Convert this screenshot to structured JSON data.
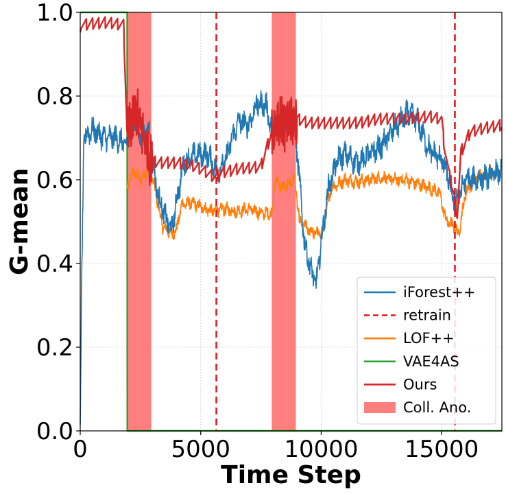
{
  "chart_data": {
    "type": "line",
    "title": "",
    "xlabel": "Time Step",
    "ylabel": "G-mean",
    "xlim": [
      0,
      17500
    ],
    "ylim": [
      0.0,
      1.0
    ],
    "xticks": [
      0,
      5000,
      10000,
      15000
    ],
    "xtick_labels": [
      "0",
      "5000",
      "10000",
      "15000"
    ],
    "yticks": [
      0.0,
      0.2,
      0.4,
      0.6,
      0.8,
      1.0
    ],
    "ytick_labels": [
      "0.0",
      "0.2",
      "0.4",
      "0.6",
      "0.8",
      "1.0"
    ],
    "grid": true,
    "legend_position": "lower-right",
    "shaded_regions": [
      {
        "name": "Coll. Ano.",
        "x0": 1950,
        "x1": 2950,
        "color": "#ff7f7f"
      },
      {
        "name": "Coll. Ano.",
        "x0": 7950,
        "x1": 8950,
        "color": "#ff7f7f"
      }
    ],
    "vlines": {
      "name": "retrain",
      "x": [
        5650,
        15550
      ],
      "color": "#e41a1c",
      "style": "dashed"
    },
    "series": [
      {
        "name": "VAE4AS",
        "color": "#2ca02c",
        "x": [
          0,
          1950,
          1955,
          17500
        ],
        "y": [
          1.0,
          1.0,
          0.0,
          0.0
        ]
      },
      {
        "name": "LOF++",
        "color": "#ff7f0e",
        "noise": 0.012,
        "x": [
          1950,
          2200,
          2500,
          2900,
          3200,
          3400,
          3800,
          4000,
          4200,
          4600,
          5000,
          5500,
          6000,
          6500,
          7000,
          7500,
          7950,
          8100,
          8400,
          8900,
          9100,
          9500,
          9900,
          10100,
          10400,
          11000,
          11500,
          12000,
          12500,
          13000,
          13500,
          14000,
          14500,
          14900,
          15200,
          15500,
          15700,
          16000,
          16500,
          17000,
          17500
        ],
        "y": [
          0.58,
          0.62,
          0.6,
          0.63,
          0.55,
          0.49,
          0.47,
          0.48,
          0.54,
          0.545,
          0.535,
          0.525,
          0.53,
          0.525,
          0.53,
          0.52,
          0.52,
          0.6,
          0.58,
          0.6,
          0.5,
          0.48,
          0.47,
          0.48,
          0.58,
          0.6,
          0.595,
          0.6,
          0.605,
          0.6,
          0.6,
          0.59,
          0.58,
          0.57,
          0.5,
          0.49,
          0.47,
          0.57,
          0.61,
          0.615,
          0.62
        ]
      },
      {
        "name": "iForest++",
        "color": "#1f77b4",
        "noise": 0.022,
        "x": [
          0,
          50,
          150,
          500,
          1000,
          1500,
          1950,
          2200,
          2500,
          2900,
          3100,
          3300,
          3600,
          3800,
          4000,
          4300,
          4800,
          5300,
          5700,
          6000,
          6300,
          6600,
          7000,
          7300,
          7700,
          7950,
          8200,
          8500,
          8900,
          9100,
          9300,
          9600,
          9800,
          10000,
          10300,
          10700,
          11000,
          11500,
          12000,
          12500,
          13000,
          13300,
          13600,
          14000,
          14400,
          14700,
          15000,
          15300,
          15500,
          15700,
          16000,
          16500,
          17000,
          17500
        ],
        "y": [
          0.0,
          0.3,
          0.7,
          0.72,
          0.7,
          0.7,
          0.68,
          0.75,
          0.7,
          0.72,
          0.6,
          0.55,
          0.5,
          0.48,
          0.55,
          0.64,
          0.66,
          0.66,
          0.62,
          0.64,
          0.7,
          0.74,
          0.73,
          0.78,
          0.78,
          0.72,
          0.72,
          0.75,
          0.73,
          0.6,
          0.45,
          0.38,
          0.35,
          0.45,
          0.58,
          0.65,
          0.66,
          0.64,
          0.66,
          0.68,
          0.72,
          0.74,
          0.76,
          0.74,
          0.68,
          0.66,
          0.65,
          0.6,
          0.55,
          0.56,
          0.6,
          0.6,
          0.61,
          0.62
        ]
      },
      {
        "name": "Ours",
        "color": "#d62728",
        "noise": 0.0,
        "sawtooth": true,
        "x": [
          0,
          40,
          200,
          1000,
          1800,
          1950,
          2300,
          2950,
          3300,
          4000,
          4600,
          5000,
          5300,
          5600,
          5800,
          6500,
          7500,
          7950,
          8200,
          8500,
          8950,
          9500,
          10500,
          11500,
          12500,
          13500,
          14500,
          15000,
          15100,
          15300,
          15500,
          15650,
          15800,
          16200,
          17000,
          17500
        ],
        "y": [
          0.98,
          0.985,
          0.985,
          0.99,
          0.985,
          0.72,
          0.78,
          0.66,
          0.655,
          0.655,
          0.65,
          0.64,
          0.63,
          0.62,
          0.63,
          0.64,
          0.645,
          0.73,
          0.77,
          0.74,
          0.76,
          0.75,
          0.75,
          0.75,
          0.76,
          0.76,
          0.765,
          0.76,
          0.7,
          0.63,
          0.58,
          0.53,
          0.68,
          0.73,
          0.74,
          0.745
        ]
      }
    ]
  },
  "legend": {
    "items": [
      {
        "label": "iForest++",
        "color": "#1f77b4",
        "kind": "line"
      },
      {
        "label": "retrain",
        "color": "#e41a1c",
        "kind": "dashed"
      },
      {
        "label": "LOF++",
        "color": "#ff7f0e",
        "kind": "line"
      },
      {
        "label": "VAE4AS",
        "color": "#2ca02c",
        "kind": "line"
      },
      {
        "label": "Ours",
        "color": "#d62728",
        "kind": "line"
      },
      {
        "label": "Coll. Ano.",
        "color": "#ff7f7f",
        "kind": "patch"
      }
    ]
  }
}
